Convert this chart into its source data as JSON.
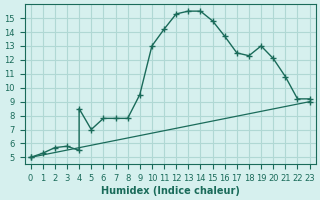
{
  "xlabel": "Humidex (Indice chaleur)",
  "bg_color": "#d6f0ee",
  "grid_color": "#b0d8d4",
  "line_color": "#1a6b5a",
  "line1_x": [
    0,
    1,
    2,
    3,
    4,
    4,
    5,
    6,
    7,
    8,
    9,
    10,
    11,
    12,
    13,
    14,
    15,
    16,
    17,
    18,
    19,
    20,
    21,
    22,
    23
  ],
  "line1_y": [
    5.0,
    5.3,
    5.7,
    5.8,
    5.5,
    8.5,
    7.0,
    7.8,
    7.8,
    7.8,
    9.5,
    13.0,
    14.2,
    15.3,
    15.5,
    15.5,
    14.8,
    13.7,
    12.5,
    12.3,
    13.0,
    12.1,
    10.8,
    9.2,
    9.2
  ],
  "line2_x": [
    0,
    23
  ],
  "line2_y": [
    5.0,
    9.0
  ],
  "xlim": [
    -0.5,
    23.5
  ],
  "ylim": [
    4.5,
    16.0
  ],
  "yticks": [
    5,
    6,
    7,
    8,
    9,
    10,
    11,
    12,
    13,
    14,
    15
  ],
  "xticks": [
    0,
    1,
    2,
    3,
    4,
    5,
    6,
    7,
    8,
    9,
    10,
    11,
    12,
    13,
    14,
    15,
    16,
    17,
    18,
    19,
    20,
    21,
    22,
    23
  ],
  "title_fontsize": 7,
  "label_fontsize": 7,
  "tick_fontsize": 6
}
